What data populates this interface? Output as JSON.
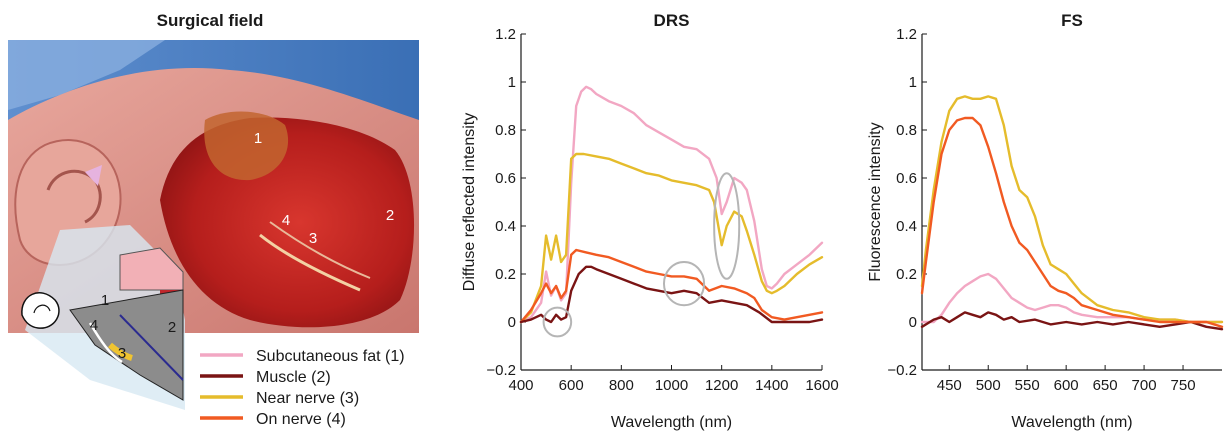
{
  "photo": {
    "title": "Surgical field",
    "point_labels": [
      "1",
      "4",
      "3",
      "2"
    ],
    "diagram_labels": [
      "1",
      "4",
      "3",
      "2"
    ]
  },
  "legend": {
    "items": [
      {
        "label": "Subcutaneous fat (1)",
        "color": "#f2a7c3"
      },
      {
        "label": "Muscle (2)",
        "color": "#7a1414"
      },
      {
        "label": "Near nerve (3)",
        "color": "#e5bc2c"
      },
      {
        "label": "On nerve (4)",
        "color": "#f15a22"
      }
    ]
  },
  "chart_data": [
    {
      "type": "line",
      "title": "DRS",
      "xlabel": "Wavelength (nm)",
      "ylabel": "Diffuse reflected intensity",
      "xlim": [
        400,
        1600
      ],
      "ylim": [
        -0.2,
        1.2
      ],
      "xticks": [
        "400",
        "600",
        "800",
        "1000",
        "1200",
        "1400",
        "1600"
      ],
      "yticks": [
        "−0.2",
        "0",
        "0.2",
        "0.4",
        "0.6",
        "0.8",
        "1",
        "1.2"
      ],
      "grid": false,
      "annotations": [
        {
          "shape": "ellipse",
          "cx": 545,
          "cy": 0.0,
          "rx": 55,
          "ry": 0.06
        },
        {
          "shape": "ellipse",
          "cx": 1050,
          "cy": 0.16,
          "rx": 80,
          "ry": 0.09
        },
        {
          "shape": "ellipse",
          "cx": 1220,
          "cy": 0.4,
          "rx": 50,
          "ry": 0.22
        }
      ],
      "series": [
        {
          "name": "Subcutaneous fat (1)",
          "color": "#f2a7c3",
          "x": [
            400,
            440,
            480,
            500,
            520,
            540,
            560,
            580,
            600,
            620,
            640,
            660,
            680,
            700,
            750,
            800,
            850,
            900,
            950,
            1000,
            1050,
            1100,
            1150,
            1180,
            1200,
            1220,
            1250,
            1280,
            1300,
            1330,
            1360,
            1380,
            1400,
            1420,
            1450,
            1500,
            1550,
            1600
          ],
          "y": [
            0.0,
            0.02,
            0.08,
            0.21,
            0.11,
            0.15,
            0.09,
            0.12,
            0.58,
            0.9,
            0.96,
            0.98,
            0.97,
            0.95,
            0.92,
            0.9,
            0.87,
            0.82,
            0.79,
            0.76,
            0.73,
            0.72,
            0.68,
            0.6,
            0.45,
            0.5,
            0.6,
            0.58,
            0.55,
            0.42,
            0.22,
            0.15,
            0.14,
            0.16,
            0.2,
            0.24,
            0.28,
            0.33
          ]
        },
        {
          "name": "Muscle (2)",
          "color": "#7a1414",
          "x": [
            400,
            440,
            480,
            500,
            520,
            540,
            560,
            580,
            600,
            630,
            660,
            680,
            700,
            750,
            800,
            850,
            900,
            950,
            1000,
            1050,
            1100,
            1150,
            1200,
            1250,
            1300,
            1350,
            1400,
            1450,
            1500,
            1550,
            1600
          ],
          "y": [
            0.0,
            0.01,
            0.03,
            0.01,
            0.0,
            0.03,
            0.01,
            0.02,
            0.13,
            0.2,
            0.23,
            0.23,
            0.22,
            0.2,
            0.18,
            0.16,
            0.14,
            0.13,
            0.12,
            0.13,
            0.12,
            0.08,
            0.09,
            0.08,
            0.07,
            0.04,
            0.0,
            0.0,
            0.0,
            0.0,
            0.01
          ]
        },
        {
          "name": "Near nerve (3)",
          "color": "#e5bc2c",
          "x": [
            400,
            440,
            480,
            500,
            520,
            540,
            560,
            580,
            600,
            620,
            650,
            700,
            750,
            800,
            850,
            900,
            950,
            1000,
            1050,
            1100,
            1150,
            1170,
            1200,
            1220,
            1250,
            1280,
            1300,
            1330,
            1360,
            1380,
            1400,
            1420,
            1450,
            1500,
            1550,
            1600
          ],
          "y": [
            0.0,
            0.04,
            0.15,
            0.36,
            0.26,
            0.36,
            0.25,
            0.28,
            0.68,
            0.7,
            0.7,
            0.69,
            0.68,
            0.66,
            0.64,
            0.62,
            0.61,
            0.59,
            0.58,
            0.57,
            0.55,
            0.5,
            0.32,
            0.4,
            0.46,
            0.44,
            0.38,
            0.28,
            0.17,
            0.13,
            0.12,
            0.13,
            0.15,
            0.2,
            0.24,
            0.27
          ]
        },
        {
          "name": "On nerve (4)",
          "color": "#f15a22",
          "x": [
            400,
            440,
            480,
            500,
            520,
            540,
            560,
            580,
            600,
            620,
            660,
            700,
            750,
            800,
            850,
            900,
            950,
            1000,
            1050,
            1100,
            1150,
            1200,
            1250,
            1300,
            1330,
            1360,
            1400,
            1450,
            1500,
            1550,
            1600
          ],
          "y": [
            0.0,
            0.05,
            0.12,
            0.16,
            0.12,
            0.15,
            0.1,
            0.13,
            0.28,
            0.3,
            0.29,
            0.28,
            0.27,
            0.25,
            0.23,
            0.21,
            0.2,
            0.19,
            0.19,
            0.18,
            0.13,
            0.15,
            0.14,
            0.12,
            0.1,
            0.05,
            0.02,
            0.01,
            0.02,
            0.03,
            0.04
          ]
        }
      ]
    },
    {
      "type": "line",
      "title": "FS",
      "xlabel": "Wavelength (nm)",
      "ylabel": "Fluorescence intensity",
      "xlim": [
        415,
        800
      ],
      "ylim": [
        -0.2,
        1.2
      ],
      "xticks": [
        "450",
        "500",
        "550",
        "600",
        "650",
        "700",
        "750"
      ],
      "yticks": [
        "−0.2",
        "0",
        "0.2",
        "0.4",
        "0.6",
        "0.8",
        "1",
        "1.2"
      ],
      "grid": false,
      "series": [
        {
          "name": "Subcutaneous fat (1)",
          "color": "#f2a7c3",
          "x": [
            415,
            430,
            440,
            450,
            460,
            470,
            480,
            490,
            500,
            510,
            520,
            530,
            540,
            550,
            560,
            570,
            580,
            590,
            600,
            610,
            620,
            640,
            660,
            680,
            700,
            720,
            740,
            760,
            780,
            800
          ],
          "y": [
            0.0,
            0.0,
            0.03,
            0.08,
            0.12,
            0.15,
            0.17,
            0.19,
            0.2,
            0.18,
            0.14,
            0.1,
            0.08,
            0.06,
            0.05,
            0.06,
            0.07,
            0.07,
            0.06,
            0.04,
            0.03,
            0.02,
            0.02,
            0.02,
            0.01,
            0.01,
            0.01,
            0.0,
            0.0,
            0.0
          ]
        },
        {
          "name": "Muscle (2)",
          "color": "#7a1414",
          "x": [
            415,
            430,
            440,
            450,
            460,
            470,
            480,
            490,
            500,
            510,
            520,
            530,
            540,
            560,
            580,
            600,
            620,
            640,
            660,
            680,
            700,
            720,
            740,
            760,
            780,
            800
          ],
          "y": [
            -0.02,
            0.01,
            0.02,
            0.0,
            0.02,
            0.04,
            0.03,
            0.02,
            0.04,
            0.03,
            0.01,
            0.02,
            0.0,
            0.01,
            -0.01,
            0.0,
            -0.01,
            0.0,
            -0.01,
            0.0,
            -0.01,
            -0.02,
            -0.01,
            0.0,
            -0.02,
            -0.03
          ]
        },
        {
          "name": "Near nerve (3)",
          "color": "#e5bc2c",
          "x": [
            415,
            420,
            430,
            440,
            450,
            460,
            470,
            480,
            490,
            500,
            510,
            520,
            530,
            540,
            550,
            560,
            570,
            580,
            590,
            600,
            610,
            620,
            640,
            660,
            680,
            700,
            720,
            740,
            760,
            780,
            800
          ],
          "y": [
            0.15,
            0.3,
            0.55,
            0.75,
            0.88,
            0.93,
            0.94,
            0.93,
            0.93,
            0.94,
            0.93,
            0.82,
            0.65,
            0.55,
            0.52,
            0.44,
            0.32,
            0.24,
            0.22,
            0.2,
            0.16,
            0.12,
            0.07,
            0.05,
            0.04,
            0.02,
            0.01,
            0.01,
            0.0,
            0.0,
            0.0
          ]
        },
        {
          "name": "On nerve (4)",
          "color": "#f15a22",
          "x": [
            415,
            420,
            430,
            440,
            450,
            460,
            470,
            480,
            490,
            500,
            510,
            520,
            530,
            540,
            550,
            560,
            570,
            580,
            590,
            600,
            610,
            620,
            640,
            660,
            680,
            700,
            720,
            740,
            760,
            780,
            800
          ],
          "y": [
            0.12,
            0.25,
            0.5,
            0.7,
            0.8,
            0.84,
            0.85,
            0.85,
            0.82,
            0.73,
            0.62,
            0.5,
            0.4,
            0.33,
            0.3,
            0.25,
            0.2,
            0.15,
            0.13,
            0.12,
            0.1,
            0.07,
            0.05,
            0.03,
            0.02,
            0.01,
            0.0,
            0.0,
            0.0,
            0.0,
            -0.02
          ]
        }
      ]
    }
  ]
}
